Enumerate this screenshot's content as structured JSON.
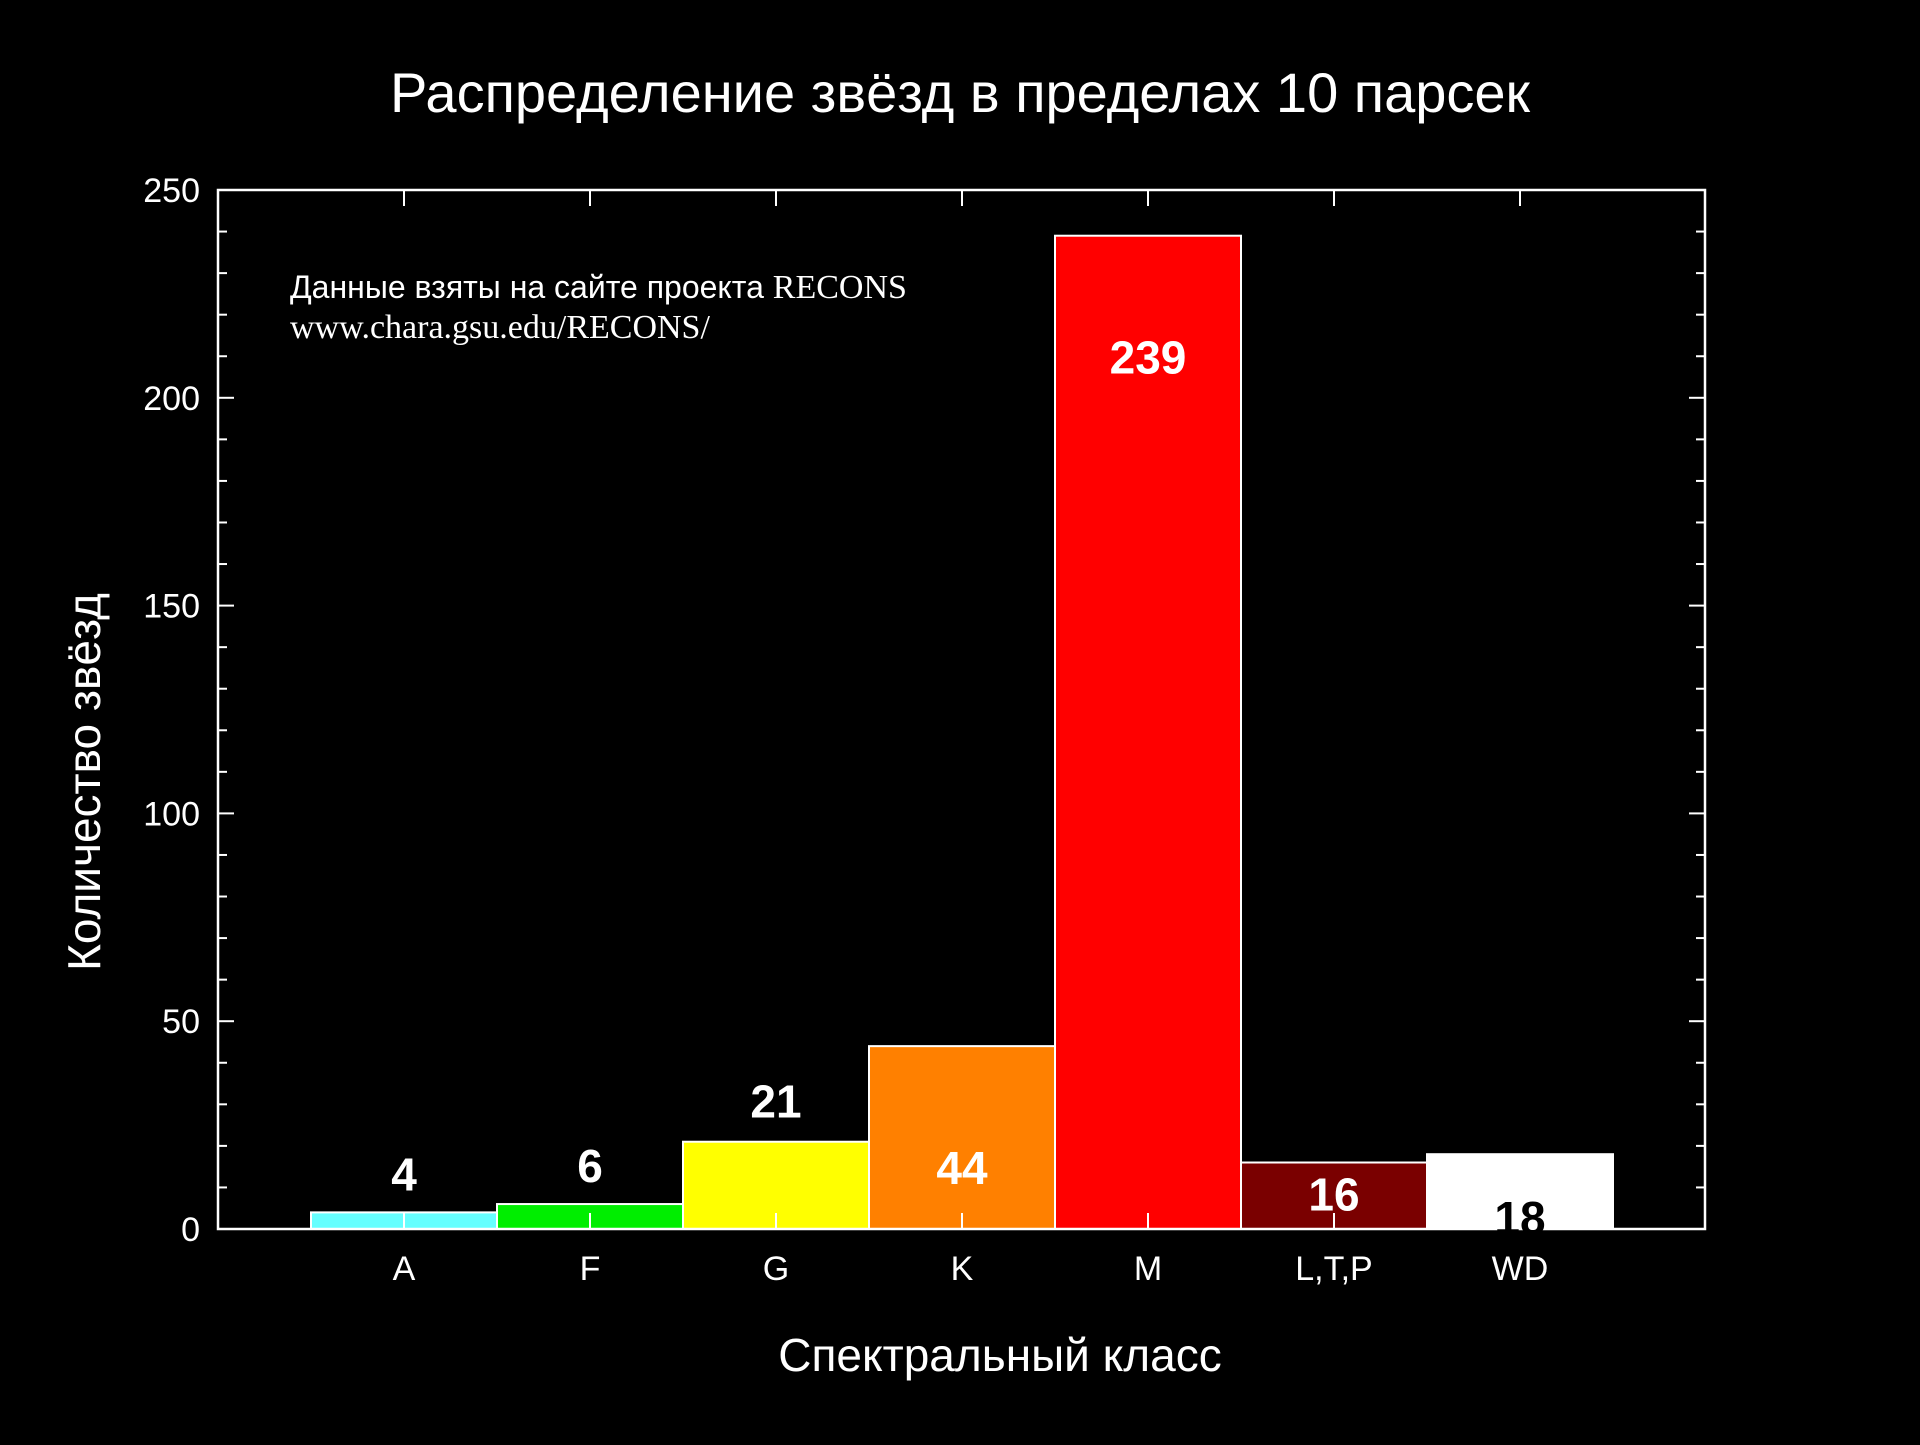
{
  "chart_data": {
    "type": "bar",
    "title": "Распределение звёзд в пределах 10 парсек",
    "xlabel": "Спектральный класс",
    "ylabel": "Количество звёзд",
    "categories": [
      "A",
      "F",
      "G",
      "K",
      "M",
      "L,T,P",
      "WD"
    ],
    "values": [
      4,
      6,
      21,
      44,
      239,
      16,
      18
    ],
    "data_labels": [
      "4",
      "6",
      "21",
      "44",
      "239",
      "16",
      "18"
    ],
    "bar_colors": [
      "#66ffff",
      "#00ee00",
      "#ffff00",
      "#ff8000",
      "#ff0000",
      "#7a0000",
      "#ffffff"
    ],
    "label_colors": [
      "#ffffff",
      "#ffffff",
      "#ffffff",
      "#ffffff",
      "#ffffff",
      "#ffffff",
      "#000000"
    ],
    "ylim": [
      0,
      250
    ],
    "yticks": [
      0,
      50,
      100,
      150,
      200,
      250
    ],
    "ytick_labels": [
      "0",
      "50",
      "100",
      "150",
      "200",
      "250"
    ],
    "minor_ytick_step": 10,
    "grid": false,
    "background": "#000000",
    "axis_color": "#ffffff",
    "annotation": {
      "line1_prefix": "Данные взяты на сайте проекта ",
      "line1_suffix": "RECONS",
      "line2": "www.chara.gsu.edu/RECONS/"
    }
  }
}
